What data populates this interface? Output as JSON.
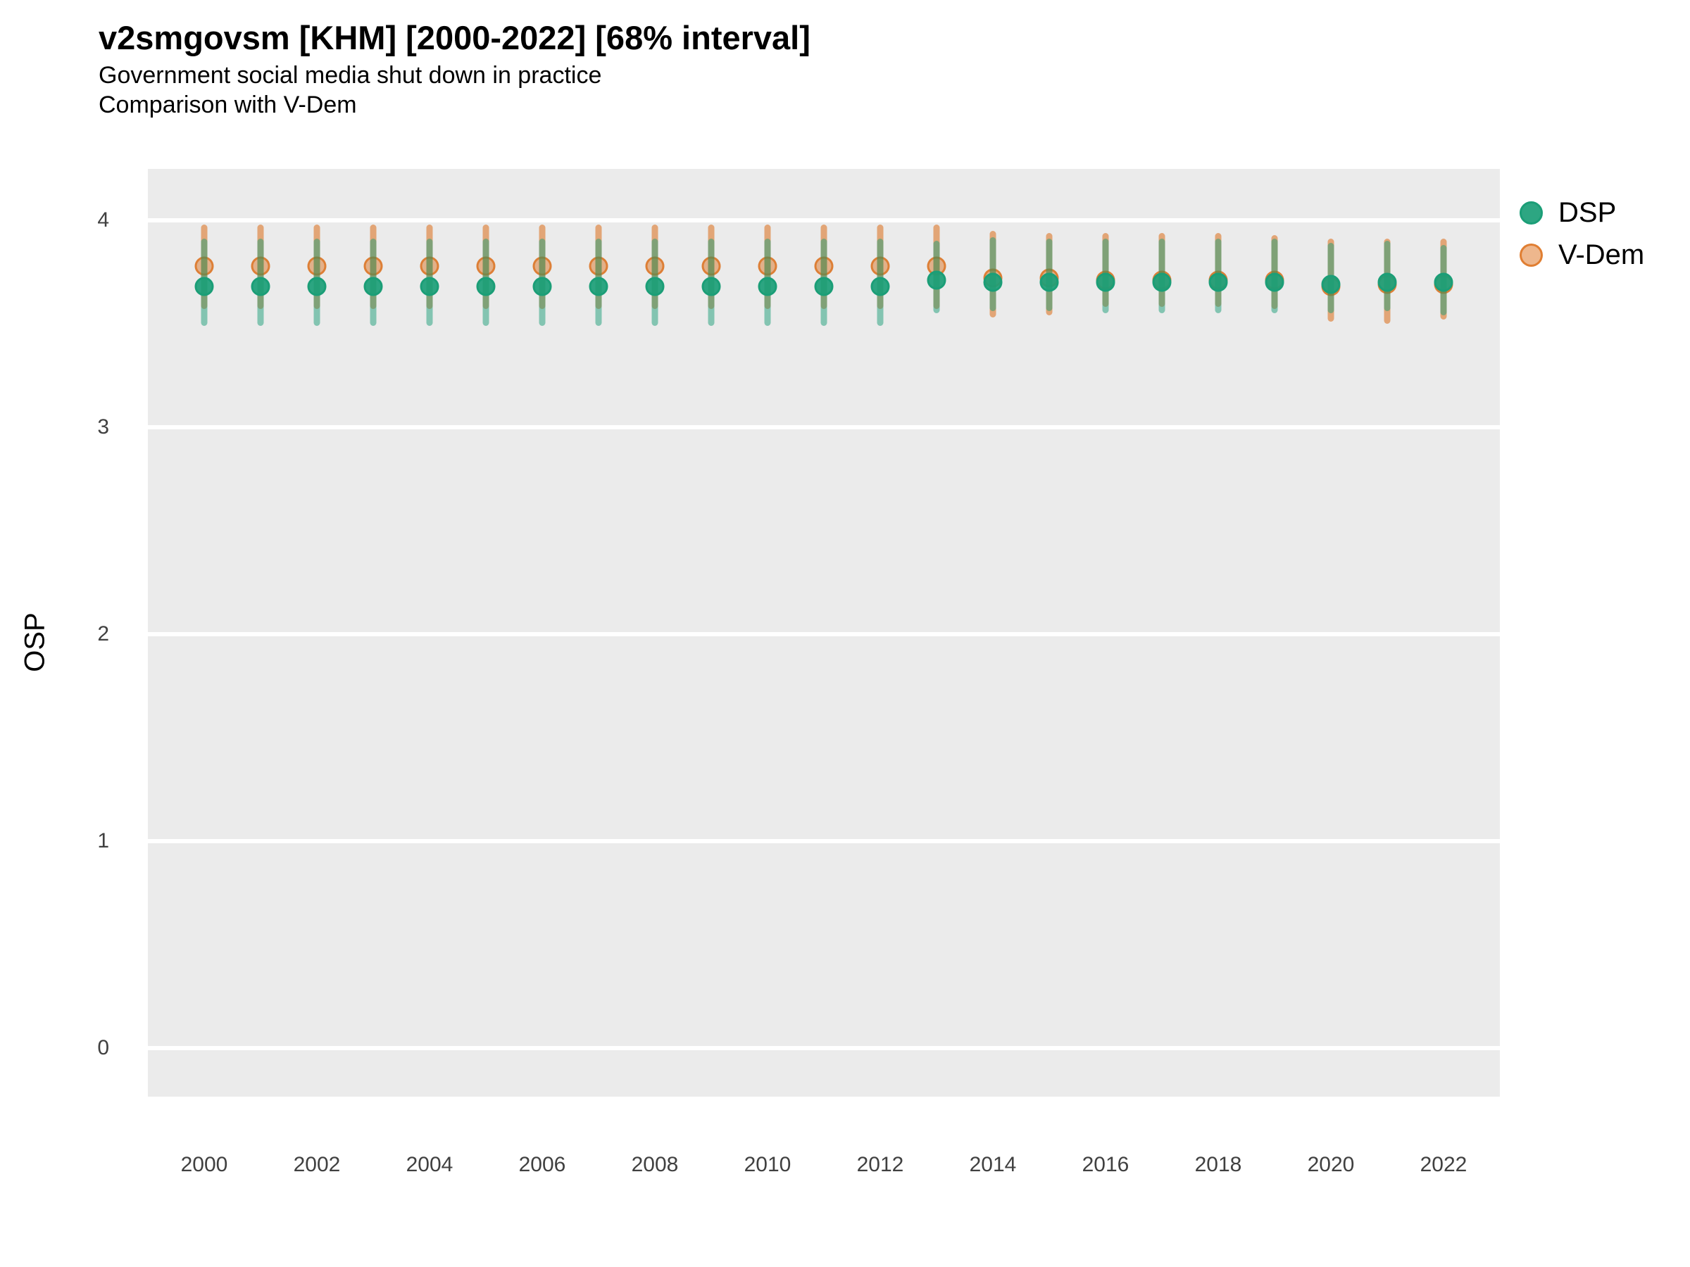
{
  "header": {
    "title": "v2smgovsm [KHM] [2000-2022] [68% interval]",
    "subtitle1": "Government social media shut down in practice",
    "subtitle2": "Comparison with V-Dem"
  },
  "axes": {
    "y_title": "OSP",
    "y_ticks": [
      "4",
      "3",
      "2",
      "1",
      "0"
    ],
    "y_tick_values": [
      4,
      3,
      2,
      1,
      0
    ],
    "x_ticks": [
      "2000",
      "2002",
      "2004",
      "2006",
      "2008",
      "2010",
      "2012",
      "2014",
      "2016",
      "2018",
      "2020",
      "2022"
    ],
    "x_tick_values": [
      2000,
      2002,
      2004,
      2006,
      2008,
      2010,
      2012,
      2014,
      2016,
      2018,
      2020,
      2022
    ]
  },
  "legend": {
    "entries": [
      {
        "label": "DSP",
        "color": "#1B9E77"
      },
      {
        "label": "V-Dem",
        "color": "#D95F02"
      }
    ]
  },
  "colors": {
    "dsp": "#1B9E77",
    "vdem": "#D95F02",
    "panel_bg": "#EBEBEB",
    "gridline": "#FFFFFF",
    "tick_text": "#404040"
  },
  "chart_data": {
    "type": "pointrange",
    "title": "v2smgovsm [KHM] [2000-2022] [68% interval]",
    "subtitle": "Government social media shut down in practice",
    "comparison_note": "Comparison with V-Dem",
    "xlabel": "",
    "ylabel": "OSP",
    "ylim": [
      -0.25,
      4.25
    ],
    "xlim": [
      1999,
      2023
    ],
    "grid": true,
    "legend_position": "right",
    "interval_level": "68%",
    "x": [
      2000,
      2001,
      2002,
      2003,
      2004,
      2005,
      2006,
      2007,
      2008,
      2009,
      2010,
      2011,
      2012,
      2013,
      2014,
      2015,
      2016,
      2017,
      2018,
      2019,
      2020,
      2021,
      2022
    ],
    "series": [
      {
        "name": "DSP",
        "color": "#1B9E77",
        "values": [
          3.68,
          3.68,
          3.68,
          3.68,
          3.68,
          3.68,
          3.68,
          3.68,
          3.68,
          3.68,
          3.68,
          3.68,
          3.68,
          3.71,
          3.7,
          3.7,
          3.7,
          3.7,
          3.7,
          3.7,
          3.69,
          3.7,
          3.7
        ],
        "lower": [
          3.49,
          3.49,
          3.49,
          3.49,
          3.49,
          3.49,
          3.49,
          3.49,
          3.49,
          3.49,
          3.49,
          3.49,
          3.49,
          3.55,
          3.56,
          3.56,
          3.55,
          3.55,
          3.55,
          3.55,
          3.55,
          3.56,
          3.54
        ],
        "upper": [
          3.91,
          3.91,
          3.91,
          3.91,
          3.91,
          3.91,
          3.91,
          3.91,
          3.91,
          3.91,
          3.91,
          3.91,
          3.91,
          3.9,
          3.92,
          3.91,
          3.91,
          3.91,
          3.91,
          3.91,
          3.89,
          3.9,
          3.88
        ]
      },
      {
        "name": "V-Dem",
        "color": "#D95F02",
        "values": [
          3.78,
          3.78,
          3.78,
          3.78,
          3.78,
          3.78,
          3.78,
          3.78,
          3.78,
          3.78,
          3.78,
          3.78,
          3.78,
          3.78,
          3.72,
          3.72,
          3.71,
          3.71,
          3.71,
          3.71,
          3.68,
          3.69,
          3.69
        ],
        "lower": [
          3.57,
          3.57,
          3.57,
          3.57,
          3.57,
          3.57,
          3.57,
          3.57,
          3.57,
          3.57,
          3.57,
          3.57,
          3.57,
          3.57,
          3.53,
          3.54,
          3.58,
          3.58,
          3.58,
          3.57,
          3.51,
          3.5,
          3.52
        ],
        "upper": [
          3.98,
          3.98,
          3.98,
          3.98,
          3.98,
          3.98,
          3.98,
          3.98,
          3.98,
          3.98,
          3.98,
          3.98,
          3.98,
          3.98,
          3.95,
          3.94,
          3.94,
          3.94,
          3.94,
          3.93,
          3.91,
          3.91,
          3.91
        ]
      }
    ]
  }
}
